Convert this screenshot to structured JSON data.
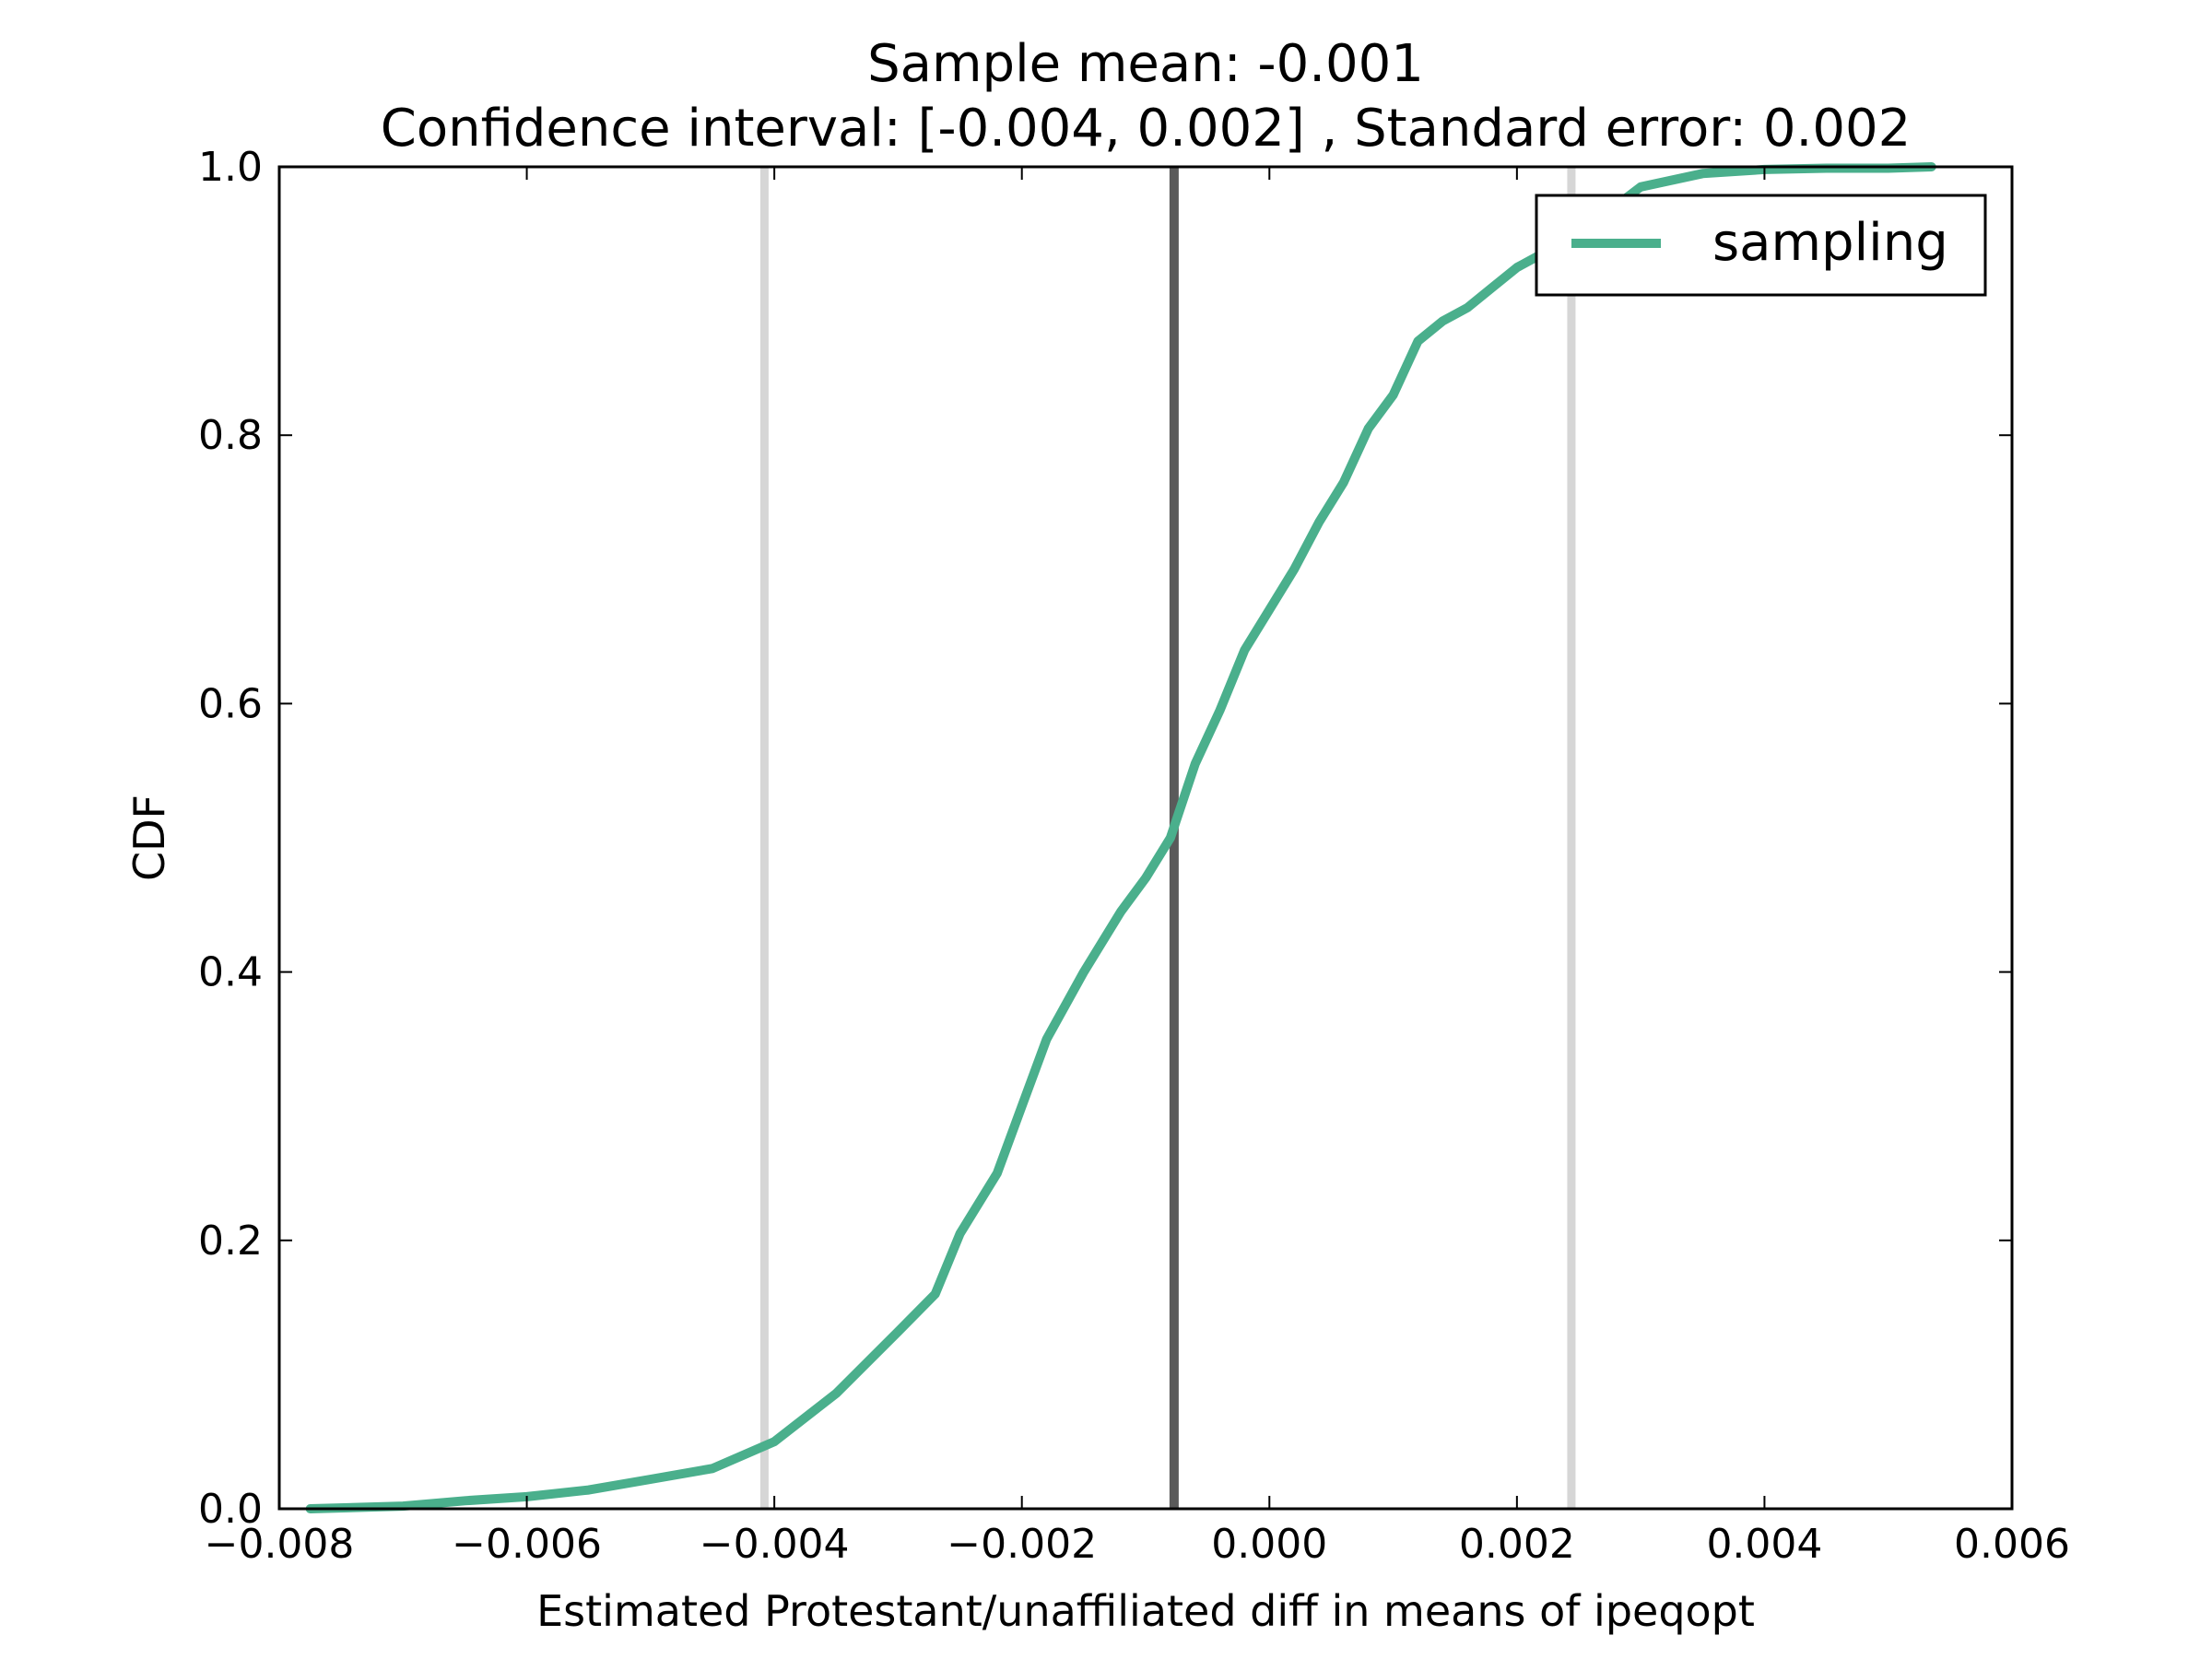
{
  "chart_data": {
    "type": "line",
    "title": "Sample mean: -0.001",
    "subtitle": "Confidence interval: [-0.004, 0.002] , Standard error: 0.002",
    "xlabel": "Estimated Protestant/unaffiliated diff in means of ipeqopt",
    "ylabel": "CDF",
    "xlim": [
      -0.008,
      0.006
    ],
    "ylim": [
      0.0,
      1.0
    ],
    "xticks": [
      -0.008,
      -0.006,
      -0.004,
      -0.002,
      0.0,
      0.002,
      0.004,
      0.006
    ],
    "xtick_labels": [
      "−0.008",
      "−0.006",
      "−0.004",
      "−0.002",
      "0.000",
      "0.002",
      "0.004",
      "0.006"
    ],
    "yticks": [
      0.0,
      0.2,
      0.4,
      0.6,
      0.8,
      1.0
    ],
    "ytick_labels": [
      "0.0",
      "0.2",
      "0.4",
      "0.6",
      "0.8",
      "1.0"
    ],
    "grid": false,
    "legend": {
      "placement": "top-right",
      "entries": [
        "sampling"
      ]
    },
    "vertical_lines": [
      {
        "x": -0.00408,
        "color": "#d6d6d6",
        "role": "ci-lower"
      },
      {
        "x": -0.00077,
        "color": "#5a5a5a",
        "role": "mean"
      },
      {
        "x": 0.00244,
        "color": "#d6d6d6",
        "role": "ci-upper"
      }
    ],
    "series": [
      {
        "name": "sampling",
        "color": "#4aaf8c",
        "x": [
          -0.00775,
          -0.007,
          -0.0065,
          -0.006,
          -0.0055,
          -0.005,
          -0.0045,
          -0.004,
          -0.0035,
          -0.003,
          -0.0027,
          -0.0025,
          -0.0022,
          -0.002,
          -0.0018,
          -0.0015,
          -0.0012,
          -0.001,
          -0.0008,
          -0.0006,
          -0.0004,
          -0.0002,
          0.0,
          0.0002,
          0.0004,
          0.0006,
          0.0008,
          0.001,
          0.0012,
          0.0014,
          0.0016,
          0.0018,
          0.002,
          0.0025,
          0.003,
          0.0035,
          0.004,
          0.0045,
          0.005,
          0.00535
        ],
        "y": [
          0.0,
          0.002,
          0.006,
          0.009,
          0.014,
          0.022,
          0.03,
          0.05,
          0.086,
          0.132,
          0.16,
          0.205,
          0.25,
          0.3,
          0.35,
          0.4,
          0.445,
          0.47,
          0.5,
          0.555,
          0.595,
          0.64,
          0.67,
          0.7,
          0.735,
          0.765,
          0.805,
          0.83,
          0.87,
          0.885,
          0.895,
          0.91,
          0.925,
          0.95,
          0.985,
          0.995,
          0.998,
          0.999,
          0.999,
          1.0
        ]
      }
    ]
  }
}
